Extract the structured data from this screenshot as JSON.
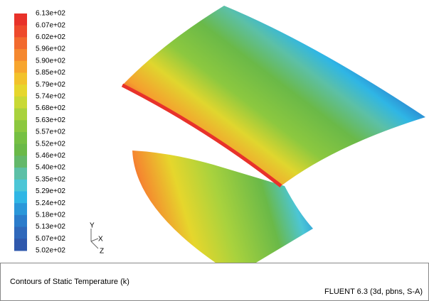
{
  "colorbar": {
    "labels": [
      "6.13e+02",
      "6.07e+02",
      "6.02e+02",
      "5.96e+02",
      "5.90e+02",
      "5.85e+02",
      "5.79e+02",
      "5.74e+02",
      "5.68e+02",
      "5.63e+02",
      "5.57e+02",
      "5.52e+02",
      "5.46e+02",
      "5.40e+02",
      "5.35e+02",
      "5.29e+02",
      "5.24e+02",
      "5.18e+02",
      "5.13e+02",
      "5.07e+02",
      "5.02e+02"
    ],
    "colors": [
      "#e8322a",
      "#ee4a2c",
      "#f26a2e",
      "#f5882f",
      "#f7a52e",
      "#f2c22b",
      "#e6d62c",
      "#c9d935",
      "#a9d23d",
      "#8cc83f",
      "#76c043",
      "#6ab948",
      "#63b86a",
      "#5cc0a6",
      "#4cc6d6",
      "#2fb6e5",
      "#2a97d9",
      "#2b7ccb",
      "#2f68bb",
      "#2f58ac"
    ]
  },
  "axes": {
    "y": "Y",
    "x": "X",
    "z": "Z"
  },
  "footer": {
    "title": "Contours of Static Temperature (k)",
    "version": "FLUENT 6.3 (3d, pbns, S-A)"
  }
}
